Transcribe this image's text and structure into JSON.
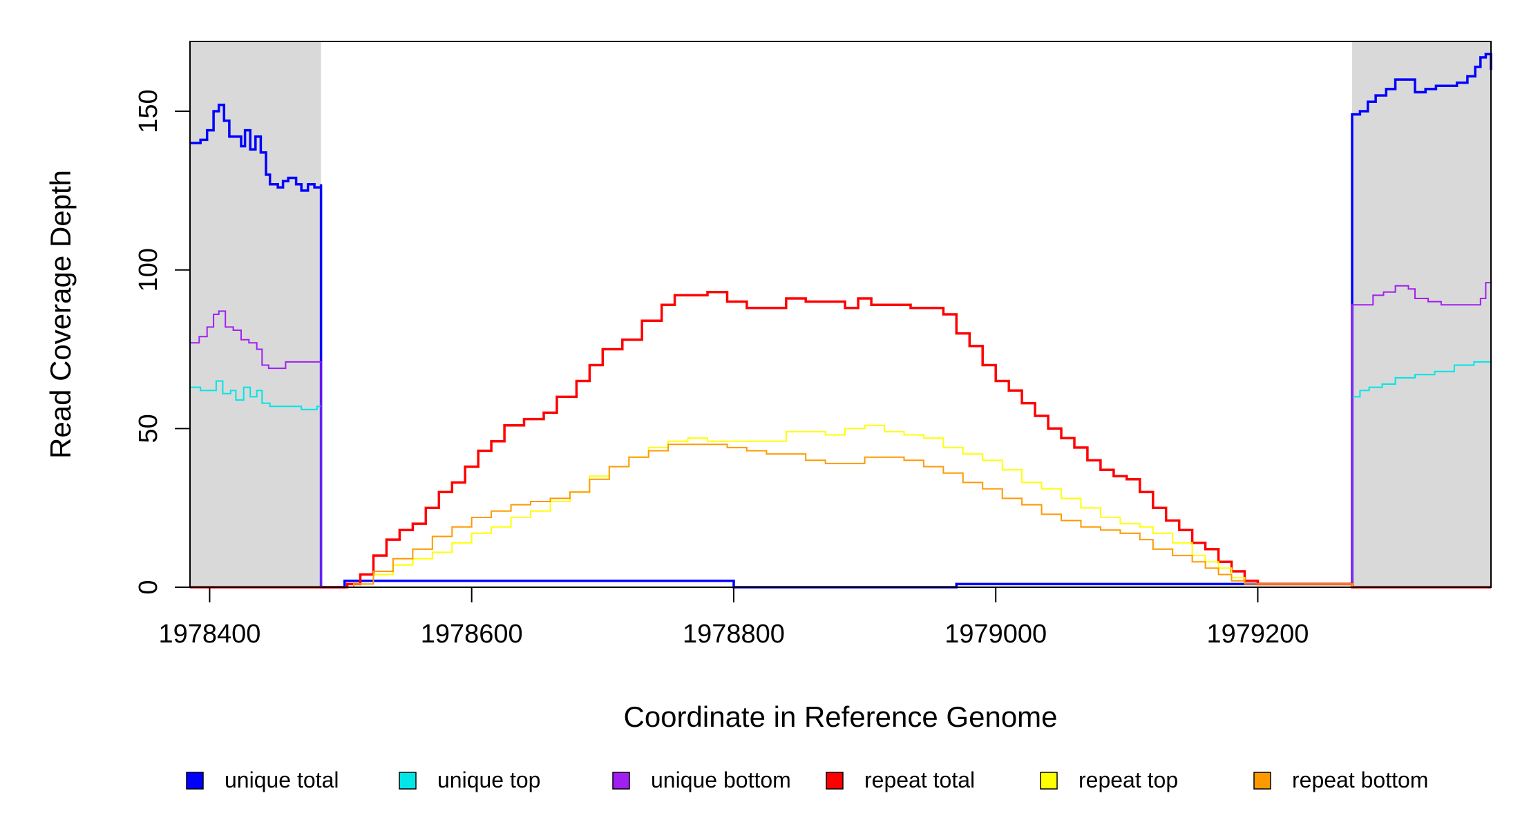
{
  "chart_data": {
    "type": "line",
    "title": "",
    "xlabel": "Coordinate in Reference Genome",
    "ylabel": "Read Coverage Depth",
    "xlim": [
      1978385,
      1979378
    ],
    "ylim": [
      0,
      172
    ],
    "xticks": [
      1978400,
      1978600,
      1978800,
      1979000,
      1979200
    ],
    "yticks": [
      0,
      50,
      100,
      150
    ],
    "shaded_regions": [
      {
        "x0": 1978385,
        "x1": 1978485,
        "color": "#d9d9d9"
      },
      {
        "x0": 1979272,
        "x1": 1979378,
        "color": "#d9d9d9"
      }
    ],
    "legend_position": "bottom",
    "series": [
      {
        "name": "unique total",
        "color": "#0000ff",
        "width": 3.5,
        "points": [
          [
            1978385,
            140
          ],
          [
            1978393,
            141
          ],
          [
            1978398,
            144
          ],
          [
            1978403,
            150
          ],
          [
            1978407,
            152
          ],
          [
            1978411,
            147
          ],
          [
            1978415,
            142
          ],
          [
            1978420,
            142
          ],
          [
            1978424,
            139
          ],
          [
            1978427,
            144
          ],
          [
            1978431,
            138
          ],
          [
            1978435,
            142
          ],
          [
            1978439,
            137
          ],
          [
            1978443,
            130
          ],
          [
            1978446,
            127
          ],
          [
            1978452,
            126
          ],
          [
            1978456,
            128
          ],
          [
            1978460,
            129
          ],
          [
            1978466,
            127
          ],
          [
            1978470,
            125
          ],
          [
            1978475,
            127
          ],
          [
            1978480,
            126
          ],
          [
            1978485,
            127
          ],
          [
            1978485,
            0
          ],
          [
            1978503,
            0
          ],
          [
            1978503,
            2
          ],
          [
            1978800,
            2
          ],
          [
            1978800,
            0
          ],
          [
            1978970,
            0
          ],
          [
            1978970,
            1
          ],
          [
            1979268,
            1
          ],
          [
            1979272,
            1
          ],
          [
            1979272,
            149
          ],
          [
            1979278,
            150
          ],
          [
            1979284,
            153
          ],
          [
            1979290,
            155
          ],
          [
            1979298,
            157
          ],
          [
            1979305,
            160
          ],
          [
            1979314,
            160
          ],
          [
            1979320,
            156
          ],
          [
            1979328,
            157
          ],
          [
            1979336,
            158
          ],
          [
            1979345,
            158
          ],
          [
            1979352,
            159
          ],
          [
            1979360,
            161
          ],
          [
            1979366,
            164
          ],
          [
            1979370,
            167
          ],
          [
            1979374,
            168
          ],
          [
            1979378,
            163
          ]
        ]
      },
      {
        "name": "unique top",
        "color": "#00e5e5",
        "width": 2,
        "points": [
          [
            1978385,
            63
          ],
          [
            1978393,
            62
          ],
          [
            1978400,
            62
          ],
          [
            1978405,
            65
          ],
          [
            1978410,
            61
          ],
          [
            1978416,
            62
          ],
          [
            1978420,
            59
          ],
          [
            1978426,
            63
          ],
          [
            1978431,
            60
          ],
          [
            1978436,
            62
          ],
          [
            1978440,
            58
          ],
          [
            1978446,
            57
          ],
          [
            1978455,
            57
          ],
          [
            1978462,
            57
          ],
          [
            1978470,
            56
          ],
          [
            1978476,
            56
          ],
          [
            1978482,
            57
          ],
          [
            1978485,
            58
          ],
          [
            1978485,
            0
          ],
          [
            1979272,
            0
          ],
          [
            1979272,
            60
          ],
          [
            1979278,
            62
          ],
          [
            1979285,
            63
          ],
          [
            1979295,
            64
          ],
          [
            1979305,
            66
          ],
          [
            1979320,
            67
          ],
          [
            1979335,
            68
          ],
          [
            1979350,
            70
          ],
          [
            1979365,
            71
          ],
          [
            1979378,
            71
          ]
        ]
      },
      {
        "name": "unique bottom",
        "color": "#a020f0",
        "width": 2,
        "points": [
          [
            1978385,
            77
          ],
          [
            1978392,
            79
          ],
          [
            1978398,
            82
          ],
          [
            1978403,
            86
          ],
          [
            1978407,
            87
          ],
          [
            1978412,
            82
          ],
          [
            1978418,
            81
          ],
          [
            1978424,
            78
          ],
          [
            1978430,
            77
          ],
          [
            1978436,
            75
          ],
          [
            1978440,
            70
          ],
          [
            1978445,
            69
          ],
          [
            1978452,
            69
          ],
          [
            1978458,
            71
          ],
          [
            1978465,
            71
          ],
          [
            1978472,
            71
          ],
          [
            1978478,
            71
          ],
          [
            1978485,
            70
          ],
          [
            1978485,
            0
          ],
          [
            1979272,
            0
          ],
          [
            1979272,
            89
          ],
          [
            1979280,
            89
          ],
          [
            1979288,
            92
          ],
          [
            1979296,
            93
          ],
          [
            1979305,
            95
          ],
          [
            1979315,
            94
          ],
          [
            1979320,
            91
          ],
          [
            1979330,
            90
          ],
          [
            1979340,
            89
          ],
          [
            1979350,
            89
          ],
          [
            1979360,
            89
          ],
          [
            1979370,
            91
          ],
          [
            1979374,
            96
          ],
          [
            1979378,
            92
          ]
        ]
      },
      {
        "name": "repeat total",
        "color": "#ff0000",
        "width": 3.5,
        "points": [
          [
            1978385,
            0
          ],
          [
            1978503,
            0
          ],
          [
            1978505,
            1
          ],
          [
            1978515,
            4
          ],
          [
            1978525,
            10
          ],
          [
            1978535,
            15
          ],
          [
            1978545,
            18
          ],
          [
            1978555,
            20
          ],
          [
            1978565,
            25
          ],
          [
            1978575,
            30
          ],
          [
            1978585,
            33
          ],
          [
            1978595,
            38
          ],
          [
            1978605,
            43
          ],
          [
            1978615,
            46
          ],
          [
            1978625,
            51
          ],
          [
            1978640,
            53
          ],
          [
            1978655,
            55
          ],
          [
            1978665,
            60
          ],
          [
            1978680,
            65
          ],
          [
            1978690,
            70
          ],
          [
            1978700,
            75
          ],
          [
            1978715,
            78
          ],
          [
            1978730,
            84
          ],
          [
            1978745,
            89
          ],
          [
            1978755,
            92
          ],
          [
            1978765,
            92
          ],
          [
            1978780,
            93
          ],
          [
            1978795,
            90
          ],
          [
            1978810,
            88
          ],
          [
            1978825,
            88
          ],
          [
            1978840,
            91
          ],
          [
            1978855,
            90
          ],
          [
            1978870,
            90
          ],
          [
            1978885,
            88
          ],
          [
            1978895,
            91
          ],
          [
            1978905,
            89
          ],
          [
            1978920,
            89
          ],
          [
            1978935,
            88
          ],
          [
            1978950,
            88
          ],
          [
            1978960,
            86
          ],
          [
            1978970,
            80
          ],
          [
            1978980,
            76
          ],
          [
            1978990,
            70
          ],
          [
            1979000,
            65
          ],
          [
            1979010,
            62
          ],
          [
            1979020,
            58
          ],
          [
            1979030,
            54
          ],
          [
            1979040,
            50
          ],
          [
            1979050,
            47
          ],
          [
            1979060,
            44
          ],
          [
            1979070,
            40
          ],
          [
            1979080,
            37
          ],
          [
            1979090,
            35
          ],
          [
            1979100,
            34
          ],
          [
            1979110,
            30
          ],
          [
            1979120,
            25
          ],
          [
            1979130,
            21
          ],
          [
            1979140,
            18
          ],
          [
            1979150,
            14
          ],
          [
            1979160,
            12
          ],
          [
            1979170,
            8
          ],
          [
            1979180,
            5
          ],
          [
            1979190,
            2
          ],
          [
            1979200,
            1
          ],
          [
            1979210,
            1
          ],
          [
            1979272,
            0
          ],
          [
            1979378,
            0
          ]
        ]
      },
      {
        "name": "repeat top",
        "color": "#ffff00",
        "width": 2,
        "points": [
          [
            1978385,
            0
          ],
          [
            1978503,
            0
          ],
          [
            1978510,
            1
          ],
          [
            1978525,
            4
          ],
          [
            1978540,
            7
          ],
          [
            1978555,
            9
          ],
          [
            1978570,
            11
          ],
          [
            1978585,
            14
          ],
          [
            1978600,
            17
          ],
          [
            1978615,
            19
          ],
          [
            1978630,
            22
          ],
          [
            1978645,
            24
          ],
          [
            1978660,
            27
          ],
          [
            1978675,
            30
          ],
          [
            1978690,
            35
          ],
          [
            1978705,
            38
          ],
          [
            1978720,
            41
          ],
          [
            1978735,
            44
          ],
          [
            1978750,
            46
          ],
          [
            1978765,
            47
          ],
          [
            1978780,
            46
          ],
          [
            1978795,
            46
          ],
          [
            1978810,
            46
          ],
          [
            1978825,
            46
          ],
          [
            1978840,
            49
          ],
          [
            1978855,
            49
          ],
          [
            1978870,
            48
          ],
          [
            1978885,
            50
          ],
          [
            1978900,
            51
          ],
          [
            1978915,
            49
          ],
          [
            1978930,
            48
          ],
          [
            1978945,
            47
          ],
          [
            1978960,
            44
          ],
          [
            1978975,
            42
          ],
          [
            1978990,
            40
          ],
          [
            1979005,
            37
          ],
          [
            1979020,
            33
          ],
          [
            1979035,
            31
          ],
          [
            1979050,
            28
          ],
          [
            1979065,
            25
          ],
          [
            1979080,
            22
          ],
          [
            1979095,
            20
          ],
          [
            1979110,
            19
          ],
          [
            1979120,
            17
          ],
          [
            1979135,
            14
          ],
          [
            1979150,
            10
          ],
          [
            1979160,
            8
          ],
          [
            1979170,
            6
          ],
          [
            1979180,
            3
          ],
          [
            1979190,
            1
          ],
          [
            1979200,
            1
          ],
          [
            1979272,
            0
          ],
          [
            1979378,
            0
          ]
        ]
      },
      {
        "name": "repeat bottom",
        "color": "#ff9900",
        "width": 2,
        "points": [
          [
            1978385,
            0
          ],
          [
            1978503,
            0
          ],
          [
            1978510,
            1
          ],
          [
            1978525,
            5
          ],
          [
            1978540,
            9
          ],
          [
            1978555,
            12
          ],
          [
            1978570,
            16
          ],
          [
            1978585,
            19
          ],
          [
            1978600,
            22
          ],
          [
            1978615,
            24
          ],
          [
            1978630,
            26
          ],
          [
            1978645,
            27
          ],
          [
            1978660,
            28
          ],
          [
            1978675,
            30
          ],
          [
            1978690,
            34
          ],
          [
            1978705,
            38
          ],
          [
            1978720,
            41
          ],
          [
            1978735,
            43
          ],
          [
            1978750,
            45
          ],
          [
            1978765,
            45
          ],
          [
            1978780,
            45
          ],
          [
            1978795,
            44
          ],
          [
            1978810,
            43
          ],
          [
            1978825,
            42
          ],
          [
            1978840,
            42
          ],
          [
            1978855,
            40
          ],
          [
            1978870,
            39
          ],
          [
            1978885,
            39
          ],
          [
            1978900,
            41
          ],
          [
            1978915,
            41
          ],
          [
            1978930,
            40
          ],
          [
            1978945,
            38
          ],
          [
            1978960,
            36
          ],
          [
            1978975,
            33
          ],
          [
            1978990,
            31
          ],
          [
            1979005,
            28
          ],
          [
            1979020,
            26
          ],
          [
            1979035,
            23
          ],
          [
            1979050,
            21
          ],
          [
            1979065,
            19
          ],
          [
            1979080,
            18
          ],
          [
            1979095,
            17
          ],
          [
            1979110,
            15
          ],
          [
            1979120,
            12
          ],
          [
            1979135,
            10
          ],
          [
            1979150,
            8
          ],
          [
            1979160,
            6
          ],
          [
            1979170,
            4
          ],
          [
            1979180,
            2
          ],
          [
            1979190,
            1
          ],
          [
            1979272,
            0
          ],
          [
            1979378,
            0
          ]
        ]
      }
    ]
  }
}
